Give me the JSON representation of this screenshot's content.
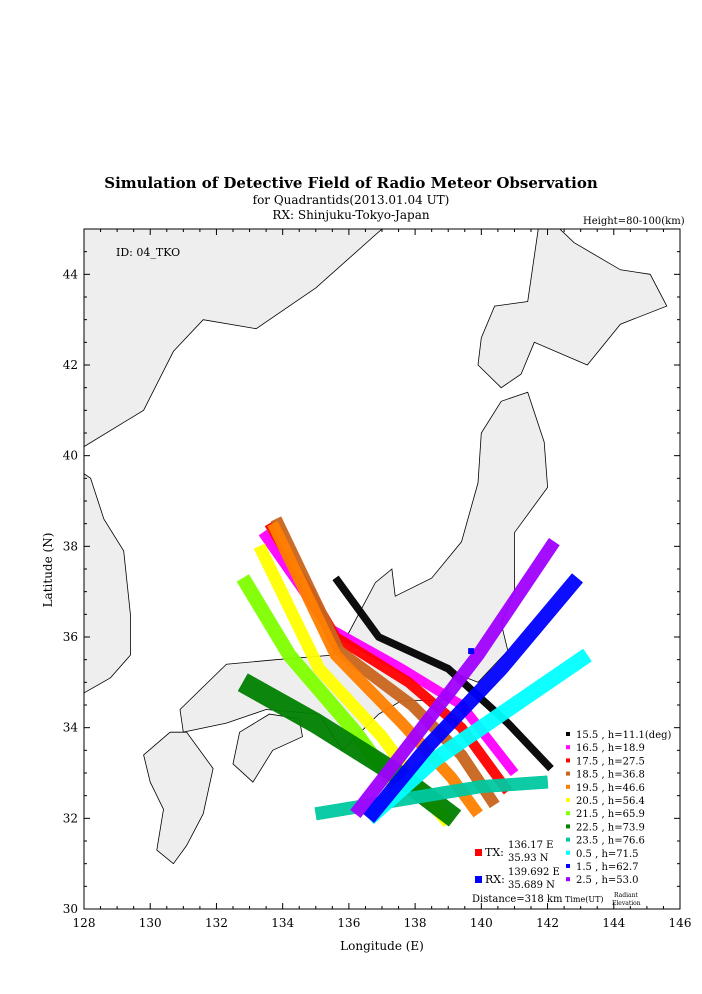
{
  "chart_data": {
    "type": "scatter",
    "title": "Simulation of Detective Field of Radio Meteor Observation",
    "subtitle": "for Quadrantids(2013.01.04 UT)",
    "subtitle2": "RX: Shinjuku-Tokyo-Japan",
    "height_label": "Height=80-100(km)",
    "id_label": "ID: 04_TKO",
    "xlabel": "Longitude (E)",
    "ylabel": "Latitude (N)",
    "xlim": [
      128,
      146
    ],
    "ylim": [
      30,
      45
    ],
    "xticks": [
      "128",
      "130",
      "132",
      "134",
      "136",
      "138",
      "140",
      "142",
      "144",
      "146"
    ],
    "yticks": [
      "30",
      "32",
      "34",
      "36",
      "38",
      "40",
      "42",
      "44"
    ],
    "tx": {
      "label": "TX:",
      "lon": "136.17 E",
      "lat": "35.93 N",
      "color": "#ff0000"
    },
    "rx": {
      "label": "RX:",
      "lon": "139.692 E",
      "lat": "35.689 N",
      "color": "#0000ff",
      "x": 139.692,
      "y": 35.689
    },
    "distance": "Distance=318 km",
    "legend_footer": {
      "time": "Time(UT)",
      "radiant1": "Radiant",
      "radiant2": "Elevation"
    },
    "series": [
      {
        "name": "15.5 ,  h=11.1(deg)",
        "color": "#000000",
        "bands": [
          [
            [
              135.6,
              37.3
            ],
            [
              136.9,
              36.0
            ],
            [
              139.0,
              35.3
            ],
            [
              140.8,
              34.1
            ],
            [
              142.1,
              33.1
            ]
          ]
        ],
        "width": 0.22
      },
      {
        "name": "16.5 ,  h=18.9",
        "color": "#ff00ff",
        "bands": [
          [
            [
              133.4,
              38.3
            ],
            [
              135.4,
              36.2
            ],
            [
              137.6,
              35.3
            ],
            [
              139.4,
              34.5
            ],
            [
              141.0,
              33.0
            ]
          ]
        ],
        "width": 0.28
      },
      {
        "name": "17.5 ,  h=27.5",
        "color": "#ff0000",
        "bands": [
          [
            [
              133.6,
              38.5
            ],
            [
              135.6,
              36.0
            ],
            [
              137.8,
              35.0
            ],
            [
              139.4,
              34.0
            ],
            [
              140.8,
              32.6
            ]
          ]
        ],
        "width": 0.3
      },
      {
        "name": "18.5 ,  h=36.8",
        "color": "#c8641e",
        "bands": [
          [
            [
              133.8,
              38.6
            ],
            [
              135.7,
              35.7
            ],
            [
              137.9,
              34.5
            ],
            [
              139.4,
              33.4
            ],
            [
              140.4,
              32.3
            ]
          ]
        ],
        "width": 0.34
      },
      {
        "name": "19.5 ,  h=46.6",
        "color": "#ff8000",
        "bands": [
          [
            [
              133.7,
              38.5
            ],
            [
              135.6,
              35.6
            ],
            [
              137.6,
              34.1
            ],
            [
              139.1,
              32.9
            ],
            [
              139.9,
              32.1
            ]
          ]
        ],
        "width": 0.34
      },
      {
        "name": "20.5 ,  h=56.4",
        "color": "#ffff00",
        "bands": [
          [
            [
              133.3,
              38.0
            ],
            [
              135.1,
              35.3
            ],
            [
              137.0,
              33.8
            ],
            [
              138.3,
              32.5
            ],
            [
              139.0,
              31.9
            ]
          ]
        ],
        "width": 0.36
      },
      {
        "name": "21.5 ,  h=65.9",
        "color": "#80ff00",
        "bands": [
          [
            [
              132.8,
              37.3
            ],
            [
              134.2,
              35.6
            ],
            [
              136.2,
              33.9
            ],
            [
              137.4,
              32.7
            ]
          ]
        ],
        "width": 0.42
      },
      {
        "name": "22.5 ,  h=73.9",
        "color": "#008000",
        "bands": [
          [
            [
              132.8,
              35.0
            ],
            [
              135.0,
              34.1
            ],
            [
              137.4,
              33.0
            ],
            [
              139.2,
              32.0
            ]
          ]
        ],
        "width": 0.6
      },
      {
        "name": "23.5 ,  h=76.6",
        "color": "#00c8a0",
        "bands": [
          [
            [
              135.0,
              32.1
            ],
            [
              137.5,
              32.4
            ],
            [
              140.0,
              32.7
            ],
            [
              142.0,
              32.8
            ]
          ]
        ],
        "width": 0.38
      },
      {
        "name": "0.5  ,  h=71.5",
        "color": "#00ffff",
        "bands": [
          [
            [
              136.6,
              32.0
            ],
            [
              138.6,
              33.3
            ],
            [
              141.2,
              34.6
            ],
            [
              143.2,
              35.6
            ]
          ]
        ],
        "width": 0.45
      },
      {
        "name": "1.5  ,  h=62.7",
        "color": "#0000ff",
        "bands": [
          [
            [
              136.6,
              32.0
            ],
            [
              138.4,
              33.6
            ],
            [
              140.6,
              35.3
            ],
            [
              142.9,
              37.3
            ]
          ]
        ],
        "width": 0.42
      },
      {
        "name": "2.5  ,  h=53.0",
        "color": "#a000ff",
        "bands": [
          [
            [
              136.2,
              32.1
            ],
            [
              137.9,
              33.7
            ],
            [
              139.9,
              35.6
            ],
            [
              142.2,
              38.1
            ]
          ]
        ],
        "width": 0.38
      }
    ]
  }
}
